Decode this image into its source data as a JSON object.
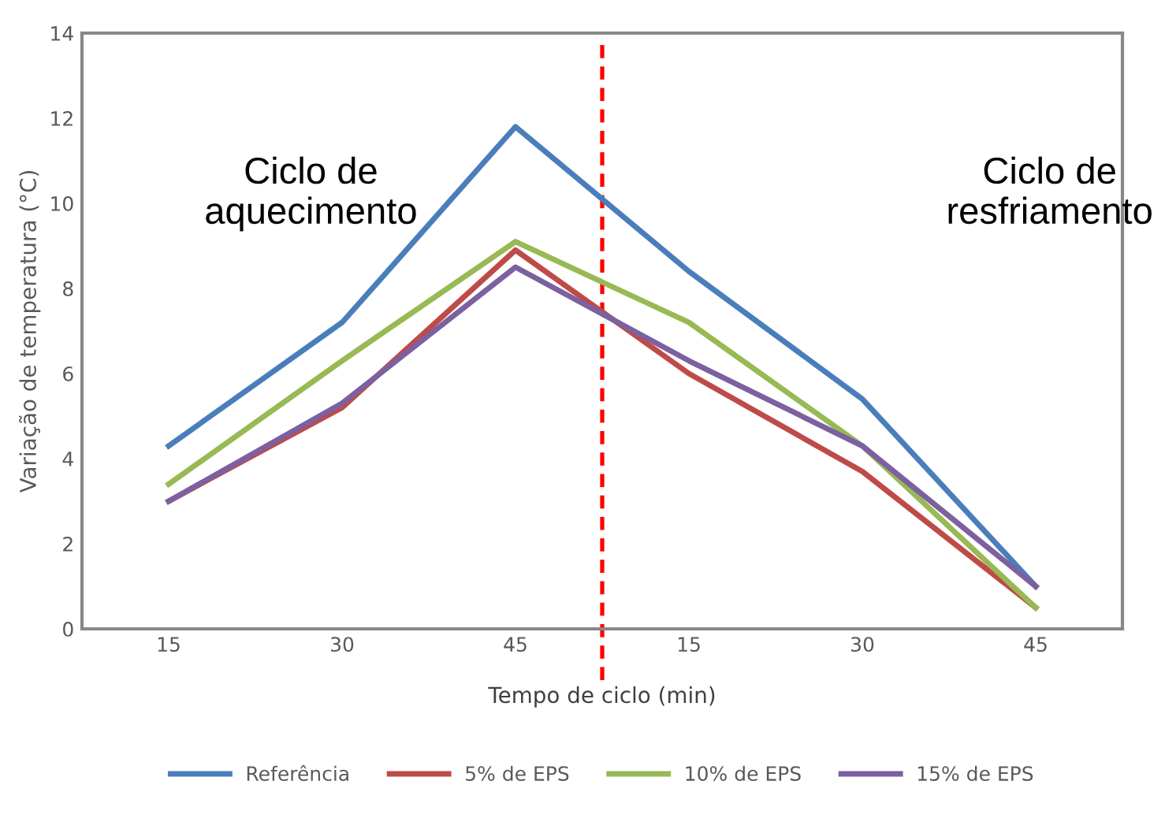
{
  "chart_data": {
    "type": "line",
    "xlabel": "Tempo de ciclo (min)",
    "ylabel": "Variação de temperatura (°C)",
    "categories": [
      "15",
      "30",
      "45",
      "15",
      "30",
      "45"
    ],
    "series": [
      {
        "name": "Referência",
        "color": "#4a7ebb",
        "values": [
          4.3,
          7.2,
          11.8,
          8.4,
          5.4,
          1.0
        ]
      },
      {
        "name": "5% de EPS",
        "color": "#be4b48",
        "values": [
          3.0,
          5.2,
          8.9,
          6.0,
          3.7,
          0.5
        ]
      },
      {
        "name": "10% de EPS",
        "color": "#98b954",
        "values": [
          3.4,
          6.3,
          9.1,
          7.2,
          4.3,
          0.5
        ]
      },
      {
        "name": "15% de EPS",
        "color": "#7d60a0",
        "values": [
          3.0,
          5.3,
          8.5,
          6.3,
          4.3,
          1.0
        ]
      }
    ],
    "ylim": [
      0,
      14
    ],
    "yticks": [
      0,
      2,
      4,
      6,
      8,
      10,
      12,
      14
    ],
    "grid": false,
    "legend": "bottom",
    "marker": "none",
    "line_style": "solid",
    "annotations": [
      "Ciclo de\naquecimento",
      "Ciclo de\nresfriamento"
    ]
  }
}
